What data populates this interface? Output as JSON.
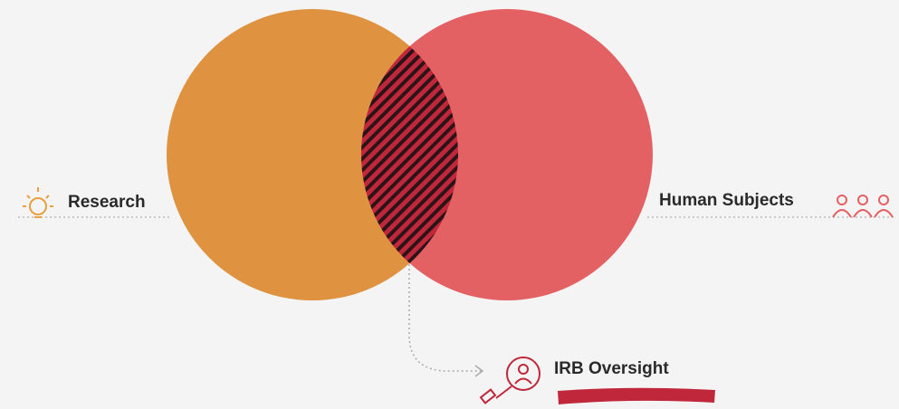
{
  "labels": {
    "left": "Research",
    "right": "Human Subjects",
    "intersection": "IRB Oversight"
  }
}
